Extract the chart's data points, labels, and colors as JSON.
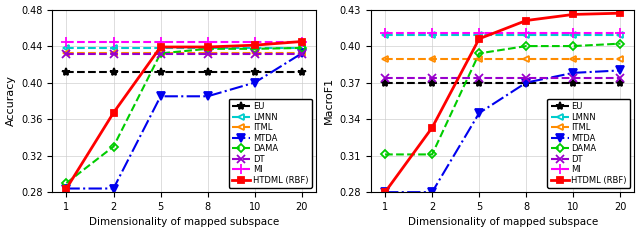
{
  "x": [
    1,
    2,
    5,
    8,
    10,
    20
  ],
  "left": {
    "ylabel": "Accuracy",
    "xlabel": "Dimensionality of mapped subspace",
    "ylim": [
      0.28,
      0.48
    ],
    "yticks": [
      0.28,
      0.32,
      0.36,
      0.4,
      0.44,
      0.48
    ],
    "series": {
      "EU": {
        "y": [
          0.412,
          0.412,
          0.412,
          0.412,
          0.412,
          0.412
        ],
        "color": "#000000",
        "marker": "*",
        "linestyle": "--",
        "lw": 1.5
      },
      "LMNN": {
        "y": [
          0.438,
          0.438,
          0.438,
          0.438,
          0.438,
          0.438
        ],
        "color": "#00CCCC",
        "marker": "<",
        "linestyle": "--",
        "lw": 1.5
      },
      "ITML": {
        "y": [
          0.432,
          0.432,
          0.432,
          0.432,
          0.432,
          0.432
        ],
        "color": "#FF8C00",
        "marker": "<",
        "linestyle": "--",
        "lw": 1.5
      },
      "MTDA": {
        "y": [
          0.284,
          0.284,
          0.385,
          0.385,
          0.4,
          0.432
        ],
        "color": "#0000EE",
        "marker": "v",
        "linestyle": "-.",
        "lw": 1.5
      },
      "DAMA": {
        "y": [
          0.29,
          0.33,
          0.432,
          0.437,
          0.437,
          0.438
        ],
        "color": "#00CC00",
        "marker": "D",
        "linestyle": "--",
        "lw": 1.5
      },
      "DT": {
        "y": [
          0.431,
          0.431,
          0.431,
          0.431,
          0.431,
          0.431
        ],
        "color": "#9900CC",
        "marker": "x",
        "linestyle": "--",
        "lw": 1.5
      },
      "MI": {
        "y": [
          0.444,
          0.444,
          0.444,
          0.444,
          0.444,
          0.444
        ],
        "color": "#FF00FF",
        "marker": "+",
        "linestyle": "--",
        "lw": 1.5
      },
      "HTDML (RBF)": {
        "y": [
          0.284,
          0.367,
          0.439,
          0.439,
          0.441,
          0.445
        ],
        "color": "#FF0000",
        "marker": "s",
        "linestyle": "-",
        "lw": 2.0
      }
    }
  },
  "right": {
    "ylabel": "MacroF1",
    "xlabel": "Dimensionality of mapped subspace",
    "ylim": [
      0.28,
      0.43
    ],
    "yticks": [
      0.28,
      0.31,
      0.34,
      0.37,
      0.4,
      0.43
    ],
    "series": {
      "EU": {
        "y": [
          0.37,
          0.37,
          0.37,
          0.37,
          0.37,
          0.37
        ],
        "color": "#000000",
        "marker": "*",
        "linestyle": "--",
        "lw": 1.5
      },
      "LMNN": {
        "y": [
          0.409,
          0.409,
          0.409,
          0.409,
          0.409,
          0.409
        ],
        "color": "#00CCCC",
        "marker": "<",
        "linestyle": "--",
        "lw": 1.5
      },
      "ITML": {
        "y": [
          0.389,
          0.389,
          0.389,
          0.389,
          0.389,
          0.389
        ],
        "color": "#FF8C00",
        "marker": "<",
        "linestyle": "--",
        "lw": 1.5
      },
      "MTDA": {
        "y": [
          0.28,
          0.28,
          0.345,
          0.37,
          0.378,
          0.38
        ],
        "color": "#0000EE",
        "marker": "v",
        "linestyle": "-.",
        "lw": 1.5
      },
      "DAMA": {
        "y": [
          0.311,
          0.311,
          0.394,
          0.4,
          0.4,
          0.402
        ],
        "color": "#00CC00",
        "marker": "D",
        "linestyle": "--",
        "lw": 1.5
      },
      "DT": {
        "y": [
          0.374,
          0.374,
          0.374,
          0.374,
          0.374,
          0.374
        ],
        "color": "#9900CC",
        "marker": "x",
        "linestyle": "--",
        "lw": 1.5
      },
      "MI": {
        "y": [
          0.411,
          0.411,
          0.411,
          0.411,
          0.411,
          0.411
        ],
        "color": "#FF00FF",
        "marker": "+",
        "linestyle": "--",
        "lw": 1.5
      },
      "HTDML (RBF)": {
        "y": [
          0.28,
          0.333,
          0.406,
          0.421,
          0.426,
          0.427
        ],
        "color": "#FF0000",
        "marker": "s",
        "linestyle": "-",
        "lw": 2.0
      }
    }
  },
  "legend_order": [
    "EU",
    "LMNN",
    "ITML",
    "MTDA",
    "DAMA",
    "DT",
    "MI",
    "HTDML (RBF)"
  ]
}
